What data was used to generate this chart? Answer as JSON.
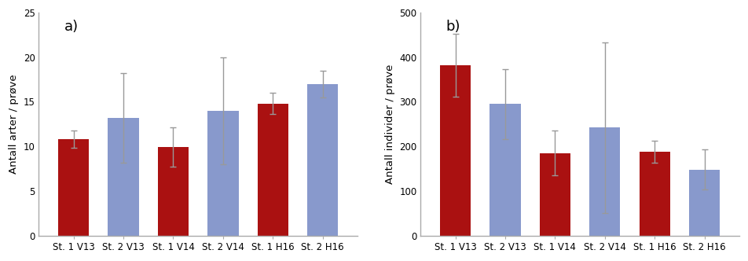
{
  "categories": [
    "St. 1 V13",
    "St. 2 V13",
    "St. 1 V14",
    "St. 2 V14",
    "St. 1 H16",
    "St. 2 H16"
  ],
  "bar_colors": [
    "#aa1111",
    "#8899cc",
    "#aa1111",
    "#8899cc",
    "#aa1111",
    "#8899cc"
  ],
  "chart_a": {
    "values": [
      10.8,
      13.2,
      9.9,
      14.0,
      14.8,
      17.0
    ],
    "errors": [
      1.0,
      5.0,
      2.2,
      6.0,
      1.2,
      1.5
    ],
    "ylabel": "Antall arter / prøve",
    "ylim": [
      0,
      25
    ],
    "yticks": [
      0,
      5,
      10,
      15,
      20,
      25
    ],
    "label": "a)"
  },
  "chart_b": {
    "values": [
      382,
      295,
      185,
      242,
      188,
      148
    ],
    "errors": [
      70,
      78,
      50,
      192,
      25,
      45
    ],
    "ylabel": "Antall individer / prøve",
    "ylim": [
      0,
      500
    ],
    "yticks": [
      0,
      100,
      200,
      300,
      400,
      500
    ],
    "label": "b)"
  },
  "background_color": "#ffffff",
  "bar_edge_color": "none",
  "error_color": "#999999",
  "error_capsize": 3,
  "error_linewidth": 1.0,
  "tick_fontsize": 8.5,
  "ylabel_fontsize": 9.5,
  "subplot_label_fontsize": 13,
  "spine_color": "#aaaaaa"
}
